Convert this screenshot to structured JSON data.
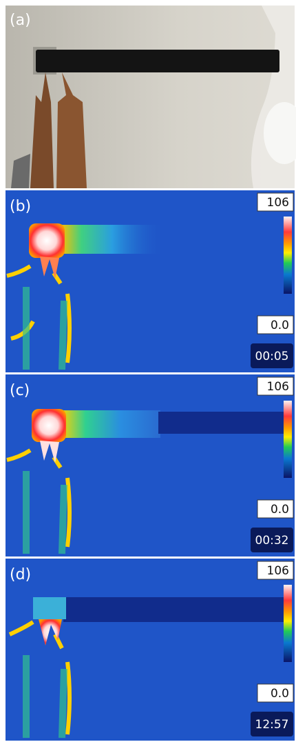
{
  "panels": [
    {
      "label": "(a)"
    },
    {
      "label": "(b)",
      "scale_max": "106",
      "scale_min": "0.0",
      "time": "00:05"
    },
    {
      "label": "(c)",
      "scale_max": "106",
      "scale_min": "0.0",
      "time": "00:32"
    },
    {
      "label": "(d)",
      "scale_max": "106",
      "scale_min": "0.0",
      "time": "12:57"
    }
  ]
}
